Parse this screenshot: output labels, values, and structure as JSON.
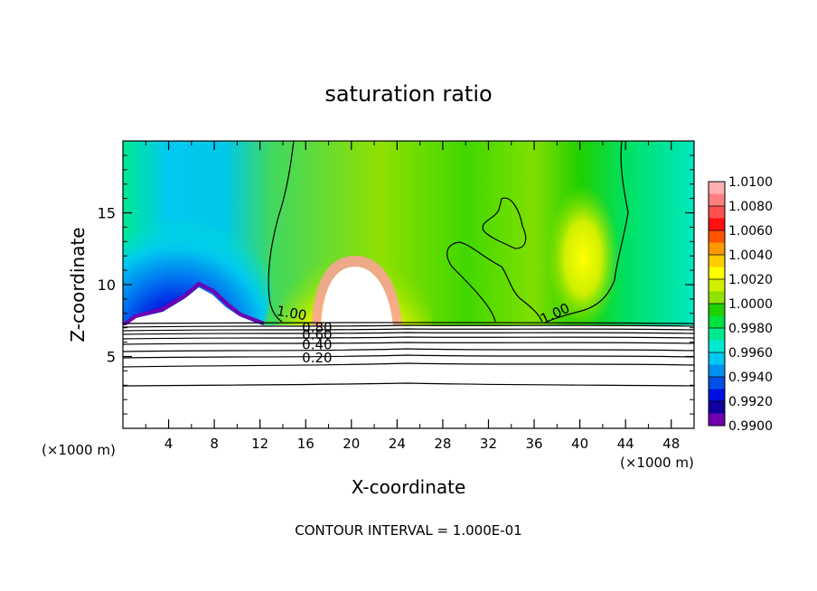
{
  "chart_data": {
    "type": "heatmap",
    "title": "saturation ratio",
    "xlabel": "X-coordinate",
    "ylabel": "Z-coordinate",
    "x_unit_left": "(×1000 m)",
    "x_unit_right": "(×1000 m)",
    "footer": "CONTOUR INTERVAL = 1.000E-01",
    "xlim": [
      0,
      50
    ],
    "ylim": [
      0,
      20
    ],
    "x_ticks": [
      4,
      8,
      12,
      16,
      20,
      24,
      28,
      32,
      36,
      40,
      44,
      48
    ],
    "y_ticks": [
      5,
      10,
      15
    ],
    "colorbar": {
      "levels": [
        "1.0100",
        "1.0080",
        "1.0060",
        "1.0040",
        "1.0020",
        "1.0000",
        "0.9980",
        "0.9960",
        "0.9940",
        "0.9920",
        "0.9900"
      ],
      "colors": [
        "#ffb0b0",
        "#ff8080",
        "#ff5050",
        "#ff1010",
        "#ff5500",
        "#ff9900",
        "#ffcc00",
        "#ffff00",
        "#d0f000",
        "#90e000",
        "#20d000",
        "#00e040",
        "#00e890",
        "#00e8d0",
        "#00c8f0",
        "#0090f0",
        "#0050e8",
        "#0010e0",
        "#1000a0",
        "#7000b0"
      ]
    },
    "contour_labels": [
      {
        "text": "1.00",
        "x": 14.7,
        "z": 7.7
      },
      {
        "text": "1.00",
        "x": 38.0,
        "z": 7.7
      },
      {
        "text": "0.80",
        "x": 17.0,
        "z": 6.7
      },
      {
        "text": "0.60",
        "x": 17.0,
        "z": 6.2
      },
      {
        "text": "0.40",
        "x": 17.0,
        "z": 5.5
      },
      {
        "text": "0.20",
        "x": 17.0,
        "z": 4.6
      }
    ]
  }
}
